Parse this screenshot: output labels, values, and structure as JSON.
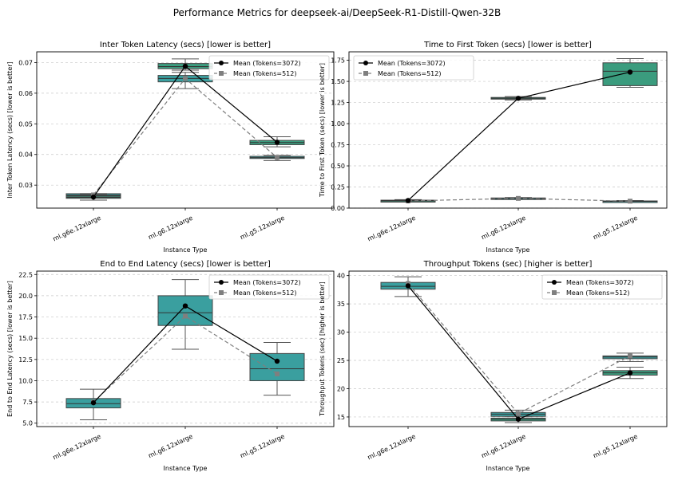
{
  "title": "Performance Metrics for deepseek-ai/DeepSeek-R1-Distill-Qwen-32B",
  "chart_data": [
    {
      "type": "box",
      "title": "Inter Token Latency (secs) [lower is better]",
      "xlabel": "Instance Type",
      "ylabel": "Inter Token Latency (secs) [lower is better]",
      "categories": [
        "ml.g6e.12xlarge",
        "ml.g6.12xlarge",
        "ml.g5.12xlarge"
      ],
      "ylim": [
        0.0225,
        0.0735
      ],
      "yticks": [
        0.03,
        0.04,
        0.05,
        0.06,
        0.07
      ],
      "ytick_labels": [
        "0.03",
        "0.04",
        "0.05",
        "0.06",
        "0.07"
      ],
      "grid": true,
      "legend_position": "top-right",
      "boxes": [
        {
          "series": "Tokens=512",
          "category": "ml.g6e.12xlarge",
          "min": 0.0265,
          "q1": 0.0266,
          "median": 0.0267,
          "q3": 0.0272,
          "max": 0.0272
        },
        {
          "series": "Tokens=3072",
          "category": "ml.g6e.12xlarge",
          "min": 0.0251,
          "q1": 0.0257,
          "median": 0.026,
          "q3": 0.0264,
          "max": 0.027
        },
        {
          "series": "Tokens=512",
          "category": "ml.g6.12xlarge",
          "min": 0.0615,
          "q1": 0.0637,
          "median": 0.0648,
          "q3": 0.0658,
          "max": 0.0668
        },
        {
          "series": "Tokens=3072",
          "category": "ml.g6.12xlarge",
          "min": 0.0675,
          "q1": 0.068,
          "median": 0.0687,
          "q3": 0.0697,
          "max": 0.0712
        },
        {
          "series": "Tokens=512",
          "category": "ml.g5.12xlarge",
          "min": 0.038,
          "q1": 0.0387,
          "median": 0.039,
          "q3": 0.0394,
          "max": 0.0397
        },
        {
          "series": "Tokens=3072",
          "category": "ml.g5.12xlarge",
          "min": 0.0425,
          "q1": 0.0432,
          "median": 0.0439,
          "q3": 0.0446,
          "max": 0.0458
        }
      ],
      "series": [
        {
          "name": "Mean (Tokens=3072)",
          "values": [
            0.0261,
            0.0688,
            0.044
          ]
        },
        {
          "name": "Mean (Tokens=512)",
          "values": [
            0.0268,
            0.0648,
            0.039
          ]
        }
      ]
    },
    {
      "type": "box",
      "title": "Time to First Token (secs) [lower is better]",
      "xlabel": "Instance Type",
      "ylabel": "Time to First Token (secs) [lower is better]",
      "categories": [
        "ml.g6e.12xlarge",
        "ml.g6.12xlarge",
        "ml.g5.12xlarge"
      ],
      "ylim": [
        0,
        1.85
      ],
      "yticks": [
        0.0,
        0.25,
        0.5,
        0.75,
        1.0,
        1.25,
        1.5,
        1.75
      ],
      "ytick_labels": [
        "0.00",
        "0.25",
        "0.50",
        "0.75",
        "1.00",
        "1.25",
        "1.50",
        "1.75"
      ],
      "grid": true,
      "legend_position": "top-left",
      "boxes": [
        {
          "series": "Tokens=512",
          "category": "ml.g6e.12xlarge",
          "min": 0.075,
          "q1": 0.08,
          "median": 0.085,
          "q3": 0.09,
          "max": 0.095
        },
        {
          "series": "Tokens=3072",
          "category": "ml.g6e.12xlarge",
          "min": 0.075,
          "q1": 0.082,
          "median": 0.088,
          "q3": 0.094,
          "max": 0.1
        },
        {
          "series": "Tokens=512",
          "category": "ml.g6.12xlarge",
          "min": 0.105,
          "q1": 0.11,
          "median": 0.115,
          "q3": 0.12,
          "max": 0.125
        },
        {
          "series": "Tokens=3072",
          "category": "ml.g6.12xlarge",
          "min": 1.28,
          "q1": 1.29,
          "median": 1.3,
          "q3": 1.31,
          "max": 1.32
        },
        {
          "series": "Tokens=512",
          "category": "ml.g5.12xlarge",
          "min": 0.07,
          "q1": 0.075,
          "median": 0.08,
          "q3": 0.085,
          "max": 0.09
        },
        {
          "series": "Tokens=3072",
          "category": "ml.g5.12xlarge",
          "min": 1.43,
          "q1": 1.45,
          "median": 1.62,
          "q3": 1.72,
          "max": 1.77
        }
      ],
      "series": [
        {
          "name": "Mean (Tokens=3072)",
          "values": [
            0.09,
            1.3,
            1.61
          ]
        },
        {
          "name": "Mean (Tokens=512)",
          "values": [
            0.085,
            0.115,
            0.082
          ]
        }
      ]
    },
    {
      "type": "box",
      "title": "End to End Latency (secs) [lower is better]",
      "xlabel": "Instance Type",
      "ylabel": "End to End Latency (secs) [lower is better]",
      "categories": [
        "ml.g6e.12xlarge",
        "ml.g6.12xlarge",
        "ml.g5.12xlarge"
      ],
      "ylim": [
        4.6,
        22.9
      ],
      "yticks": [
        5.0,
        7.5,
        10.0,
        12.5,
        15.0,
        17.5,
        20.0,
        22.5
      ],
      "ytick_labels": [
        "5.0",
        "7.5",
        "10.0",
        "12.5",
        "15.0",
        "17.5",
        "20.0",
        "22.5"
      ],
      "grid": true,
      "legend_position": "top-right",
      "boxes": [
        {
          "series": "Tokens=512",
          "category": "ml.g6e.12xlarge",
          "min": 5.4,
          "q1": 6.8,
          "median": 7.3,
          "q3": 7.9,
          "max": 9.0
        },
        {
          "series": "Tokens=512",
          "category": "ml.g6.12xlarge",
          "min": 13.7,
          "q1": 16.5,
          "median": 18.0,
          "q3": 20.0,
          "max": 21.9
        },
        {
          "series": "Tokens=512",
          "category": "ml.g5.12xlarge",
          "min": 8.3,
          "q1": 10.0,
          "median": 11.4,
          "q3": 13.2,
          "max": 14.5
        }
      ],
      "series": [
        {
          "name": "Mean (Tokens=3072)",
          "values": [
            7.4,
            18.8,
            12.3
          ]
        },
        {
          "name": "Mean (Tokens=512)",
          "values": [
            7.5,
            17.6,
            10.8
          ]
        }
      ]
    },
    {
      "type": "box",
      "title": "Throughput Tokens (sec) [higher is better]",
      "xlabel": "Instance Type",
      "ylabel": "Throughput Tokens (sec) [higher is better]",
      "categories": [
        "ml.g6e.12xlarge",
        "ml.g6.12xlarge",
        "ml.g5.12xlarge"
      ],
      "ylim": [
        13.3,
        40.8
      ],
      "yticks": [
        15,
        20,
        25,
        30,
        35,
        40
      ],
      "ytick_labels": [
        "15",
        "20",
        "25",
        "30",
        "35",
        "40"
      ],
      "grid": true,
      "legend_position": "top-right",
      "boxes": [
        {
          "series": "Tokens=512",
          "category": "ml.g6e.12xlarge",
          "min": 36.3,
          "q1": 37.6,
          "median": 38.1,
          "q3": 38.8,
          "max": 39.8
        },
        {
          "series": "Tokens=3072",
          "category": "ml.g6.12xlarge",
          "min": 14.0,
          "q1": 14.3,
          "median": 14.6,
          "q3": 14.8,
          "max": 15.1
        },
        {
          "series": "Tokens=512",
          "category": "ml.g6.12xlarge",
          "min": 14.8,
          "q1": 15.1,
          "median": 15.5,
          "q3": 15.8,
          "max": 16.2
        },
        {
          "series": "Tokens=3072",
          "category": "ml.g5.12xlarge",
          "min": 21.8,
          "q1": 22.4,
          "median": 22.8,
          "q3": 23.2,
          "max": 23.8
        },
        {
          "series": "Tokens=512",
          "category": "ml.g5.12xlarge",
          "min": 24.8,
          "q1": 25.3,
          "median": 25.6,
          "q3": 25.8,
          "max": 26.3
        }
      ],
      "series": [
        {
          "name": "Mean (Tokens=3072)",
          "values": [
            38.2,
            14.6,
            22.8
          ]
        },
        {
          "name": "Mean (Tokens=512)",
          "values": [
            38.6,
            15.6,
            25.8
          ]
        }
      ]
    }
  ]
}
